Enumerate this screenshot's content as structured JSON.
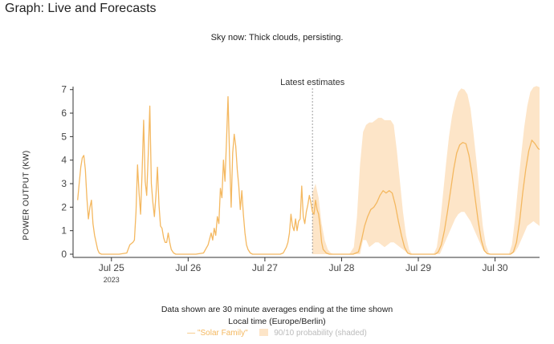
{
  "page": {
    "title": "Graph: Live and Forecasts",
    "sky_status": "Sky now: Thick clouds, persisting.",
    "note_line1": "Data shown are 30 minute averages ending at the time shown",
    "note_line2": "Local time (Europe/Berlin)"
  },
  "legend": {
    "line_marker": "—",
    "line_label": "\"Solar Family\"",
    "band_label": "90/10 probability (shaded)"
  },
  "colors": {
    "line": "#f4b860",
    "band": "#fde5c8",
    "axis": "#333333",
    "divider": "#888888"
  },
  "chart_data": {
    "type": "line",
    "title": "",
    "xlabel": "",
    "ylabel": "POWER OUTPUT (KW)",
    "ylim": [
      0,
      7.4
    ],
    "xlim": [
      24.5,
      30.58
    ],
    "yticks": [
      0,
      1,
      2,
      3,
      4,
      5,
      6,
      7
    ],
    "xticks": [
      {
        "x": 25,
        "label": "Jul 25",
        "sublabel": "2023"
      },
      {
        "x": 26,
        "label": "Jul 26"
      },
      {
        "x": 27,
        "label": "Jul 27"
      },
      {
        "x": 28,
        "label": "Jul 28"
      },
      {
        "x": 29,
        "label": "Jul 29"
      },
      {
        "x": 30,
        "label": "Jul 30"
      }
    ],
    "divider": {
      "x": 27.62,
      "label": "Latest estimates"
    },
    "grid": false,
    "legend_position": "bottom",
    "series": [
      {
        "name": "\"Solar Family\"",
        "points": [
          [
            24.56,
            2.3
          ],
          [
            24.58,
            3.0
          ],
          [
            24.6,
            3.7
          ],
          [
            24.62,
            4.1
          ],
          [
            24.64,
            4.2
          ],
          [
            24.66,
            3.6
          ],
          [
            24.68,
            2.4
          ],
          [
            24.7,
            1.5
          ],
          [
            24.72,
            2.0
          ],
          [
            24.74,
            2.3
          ],
          [
            24.76,
            1.3
          ],
          [
            24.78,
            0.8
          ],
          [
            24.8,
            0.5
          ],
          [
            24.82,
            0.2
          ],
          [
            24.84,
            0.05
          ],
          [
            24.87,
            0
          ],
          [
            25.1,
            0
          ],
          [
            25.2,
            0.05
          ],
          [
            25.24,
            0.4
          ],
          [
            25.28,
            0.5
          ],
          [
            25.3,
            0.6
          ],
          [
            25.32,
            1.8
          ],
          [
            25.34,
            3.8
          ],
          [
            25.36,
            2.6
          ],
          [
            25.38,
            1.7
          ],
          [
            25.4,
            3.5
          ],
          [
            25.42,
            5.7
          ],
          [
            25.44,
            3.1
          ],
          [
            25.46,
            2.5
          ],
          [
            25.48,
            4.2
          ],
          [
            25.5,
            6.3
          ],
          [
            25.52,
            3.0
          ],
          [
            25.54,
            2.2
          ],
          [
            25.56,
            1.6
          ],
          [
            25.58,
            2.5
          ],
          [
            25.6,
            3.7
          ],
          [
            25.62,
            2.1
          ],
          [
            25.64,
            1.2
          ],
          [
            25.66,
            1.1
          ],
          [
            25.68,
            0.7
          ],
          [
            25.7,
            0.5
          ],
          [
            25.72,
            0.5
          ],
          [
            25.74,
            0.9
          ],
          [
            25.76,
            0.5
          ],
          [
            25.78,
            0.2
          ],
          [
            25.81,
            0.05
          ],
          [
            25.84,
            0
          ],
          [
            26.1,
            0
          ],
          [
            26.2,
            0.05
          ],
          [
            26.26,
            0.4
          ],
          [
            26.3,
            0.9
          ],
          [
            26.32,
            0.6
          ],
          [
            26.34,
            1.1
          ],
          [
            26.36,
            0.8
          ],
          [
            26.38,
            1.6
          ],
          [
            26.4,
            1.3
          ],
          [
            26.42,
            2.8
          ],
          [
            26.44,
            2.4
          ],
          [
            26.46,
            4.0
          ],
          [
            26.48,
            3.1
          ],
          [
            26.5,
            4.8
          ],
          [
            26.52,
            6.7
          ],
          [
            26.54,
            4.2
          ],
          [
            26.56,
            2.0
          ],
          [
            26.58,
            4.3
          ],
          [
            26.6,
            5.1
          ],
          [
            26.62,
            4.6
          ],
          [
            26.64,
            3.6
          ],
          [
            26.66,
            2.9
          ],
          [
            26.68,
            1.9
          ],
          [
            26.7,
            2.7
          ],
          [
            26.72,
            1.7
          ],
          [
            26.74,
            0.9
          ],
          [
            26.76,
            0.4
          ],
          [
            26.78,
            0.2
          ],
          [
            26.81,
            0.05
          ],
          [
            26.84,
            0
          ],
          [
            27.2,
            0
          ],
          [
            27.24,
            0.05
          ],
          [
            27.28,
            0.3
          ],
          [
            27.3,
            0.5
          ],
          [
            27.32,
            0.9
          ],
          [
            27.34,
            1.7
          ],
          [
            27.36,
            1.2
          ],
          [
            27.38,
            1.0
          ],
          [
            27.4,
            1.5
          ],
          [
            27.42,
            1.0
          ],
          [
            27.44,
            1.4
          ],
          [
            27.46,
            1.5
          ],
          [
            27.48,
            2.9
          ],
          [
            27.5,
            1.6
          ],
          [
            27.52,
            1.3
          ],
          [
            27.54,
            1.8
          ],
          [
            27.56,
            2.1
          ],
          [
            27.58,
            2.5
          ],
          [
            27.6,
            2.2
          ],
          [
            27.62,
            1.8
          ],
          [
            27.64,
            1.7
          ],
          [
            27.66,
            2.3
          ],
          [
            27.68,
            1.9
          ],
          [
            27.7,
            1.7
          ],
          [
            27.72,
            1.2
          ],
          [
            27.74,
            0.5
          ],
          [
            27.76,
            0.2
          ],
          [
            27.8,
            0.05
          ],
          [
            27.84,
            0
          ],
          [
            28.15,
            0
          ],
          [
            28.22,
            0.1
          ],
          [
            28.26,
            0.6
          ],
          [
            28.3,
            1.2
          ],
          [
            28.34,
            1.6
          ],
          [
            28.38,
            1.9
          ],
          [
            28.42,
            2.0
          ],
          [
            28.46,
            2.2
          ],
          [
            28.5,
            2.5
          ],
          [
            28.54,
            2.7
          ],
          [
            28.58,
            2.6
          ],
          [
            28.62,
            2.7
          ],
          [
            28.66,
            2.6
          ],
          [
            28.7,
            2.1
          ],
          [
            28.74,
            1.4
          ],
          [
            28.78,
            0.8
          ],
          [
            28.82,
            0.3
          ],
          [
            28.86,
            0.05
          ],
          [
            28.9,
            0
          ],
          [
            29.22,
            0
          ],
          [
            29.26,
            0.1
          ],
          [
            29.3,
            0.4
          ],
          [
            29.34,
            1.0
          ],
          [
            29.38,
            1.8
          ],
          [
            29.42,
            2.7
          ],
          [
            29.46,
            3.6
          ],
          [
            29.5,
            4.3
          ],
          [
            29.54,
            4.65
          ],
          [
            29.58,
            4.75
          ],
          [
            29.62,
            4.7
          ],
          [
            29.66,
            4.2
          ],
          [
            29.7,
            3.4
          ],
          [
            29.74,
            2.4
          ],
          [
            29.78,
            1.4
          ],
          [
            29.82,
            0.6
          ],
          [
            29.86,
            0.15
          ],
          [
            29.9,
            0.02
          ],
          [
            29.94,
            0
          ],
          [
            30.2,
            0
          ],
          [
            30.24,
            0.1
          ],
          [
            30.28,
            0.5
          ],
          [
            30.32,
            1.4
          ],
          [
            30.36,
            2.6
          ],
          [
            30.4,
            3.6
          ],
          [
            30.44,
            4.4
          ],
          [
            30.48,
            4.85
          ],
          [
            30.52,
            4.7
          ],
          [
            30.56,
            4.5
          ],
          [
            30.58,
            4.45
          ]
        ]
      }
    ],
    "band": {
      "name": "90/10 probability (shaded)",
      "points": [
        [
          27.62,
          0,
          2.6
        ],
        [
          27.66,
          0,
          3.0
        ],
        [
          27.7,
          0,
          2.4
        ],
        [
          27.74,
          0,
          1.3
        ],
        [
          27.78,
          0,
          0.6
        ],
        [
          27.82,
          0,
          0.2
        ],
        [
          27.86,
          0,
          0.05
        ],
        [
          27.9,
          0,
          0
        ],
        [
          28.1,
          0,
          0
        ],
        [
          28.16,
          0,
          0.3
        ],
        [
          28.2,
          0,
          1.6
        ],
        [
          28.24,
          0,
          3.8
        ],
        [
          28.28,
          0.6,
          5.2
        ],
        [
          28.32,
          0.6,
          5.5
        ],
        [
          28.36,
          0.3,
          5.6
        ],
        [
          28.4,
          0.4,
          5.6
        ],
        [
          28.44,
          0.5,
          5.7
        ],
        [
          28.48,
          0.5,
          5.8
        ],
        [
          28.52,
          0.4,
          5.8
        ],
        [
          28.56,
          0.3,
          5.7
        ],
        [
          28.6,
          0.4,
          5.7
        ],
        [
          28.64,
          0.5,
          5.7
        ],
        [
          28.68,
          0.5,
          5.5
        ],
        [
          28.72,
          0.4,
          4.4
        ],
        [
          28.76,
          0.3,
          3.1
        ],
        [
          28.8,
          0.2,
          1.8
        ],
        [
          28.84,
          0.1,
          0.8
        ],
        [
          28.88,
          0,
          0.2
        ],
        [
          28.92,
          0,
          0
        ],
        [
          29.2,
          0,
          0
        ],
        [
          29.24,
          0,
          0.3
        ],
        [
          29.28,
          0,
          1.2
        ],
        [
          29.32,
          0.3,
          2.5
        ],
        [
          29.36,
          0.6,
          3.8
        ],
        [
          29.4,
          0.9,
          5.0
        ],
        [
          29.44,
          1.2,
          5.9
        ],
        [
          29.48,
          1.5,
          6.5
        ],
        [
          29.52,
          1.7,
          6.9
        ],
        [
          29.56,
          1.8,
          7.05
        ],
        [
          29.6,
          1.8,
          7.0
        ],
        [
          29.64,
          1.6,
          6.8
        ],
        [
          29.68,
          1.4,
          6.2
        ],
        [
          29.72,
          1.1,
          5.1
        ],
        [
          29.76,
          0.8,
          3.9
        ],
        [
          29.8,
          0.5,
          2.5
        ],
        [
          29.84,
          0.2,
          1.2
        ],
        [
          29.88,
          0.05,
          0.4
        ],
        [
          29.92,
          0,
          0.05
        ],
        [
          29.95,
          0,
          0
        ],
        [
          30.18,
          0,
          0
        ],
        [
          30.22,
          0,
          0.4
        ],
        [
          30.26,
          0.1,
          1.5
        ],
        [
          30.3,
          0.3,
          2.9
        ],
        [
          30.34,
          0.6,
          4.2
        ],
        [
          30.38,
          0.9,
          5.4
        ],
        [
          30.42,
          1.2,
          6.3
        ],
        [
          30.46,
          1.3,
          6.9
        ],
        [
          30.5,
          1.4,
          7.1
        ],
        [
          30.54,
          1.3,
          7.15
        ],
        [
          30.58,
          1.2,
          7.1
        ]
      ]
    }
  }
}
